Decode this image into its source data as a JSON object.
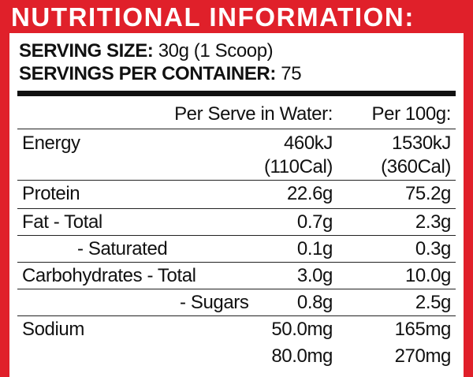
{
  "title": "NUTRITIONAL INFORMATION:",
  "serving_size": {
    "label": "SERVING SIZE:",
    "value": "30g (1 Scoop)"
  },
  "servings_per_container": {
    "label": "SERVINGS PER CONTAINER:",
    "value": "75"
  },
  "table": {
    "header": [
      "Per Serve in Water:",
      "Per 100g:"
    ],
    "rows": [
      {
        "label": "Energy",
        "values": [
          "460kJ",
          "1530kJ"
        ]
      },
      {
        "values": [
          "(110Cal)",
          "(360Cal)"
        ]
      },
      {
        "label": "Protein",
        "values": [
          "22.6g",
          "75.2g"
        ]
      },
      {
        "label": "Fat - Total",
        "values": [
          "0.7g",
          "2.3g"
        ]
      },
      {
        "label": "- Saturated",
        "values": [
          "0.1g",
          "0.3g"
        ]
      },
      {
        "label": "Carbohydrates - Total",
        "values": [
          "3.0g",
          "10.0g"
        ]
      },
      {
        "label": "- Sugars",
        "values": [
          "0.8g",
          "2.5g"
        ]
      },
      {
        "label": "Sodium",
        "values": [
          "50.0mg",
          "165mg"
        ]
      },
      {
        "values": [
          "80.0mg",
          "270mg"
        ]
      }
    ]
  }
}
